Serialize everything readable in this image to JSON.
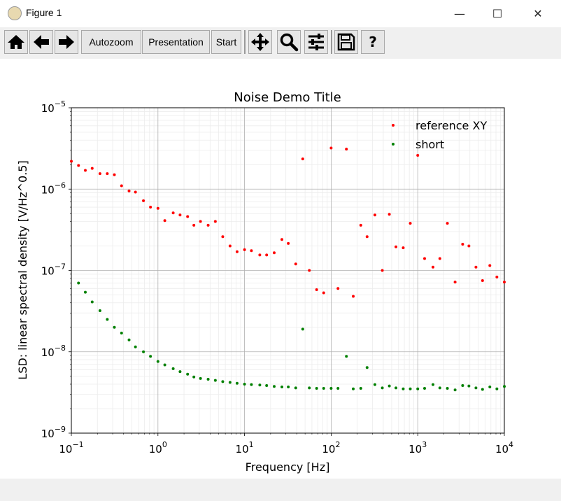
{
  "window": {
    "title": "Figure 1",
    "minimize": "—",
    "maximize": "☐",
    "close": "✕"
  },
  "toolbar": {
    "autozoom_label": "Autozoom",
    "presentation_label": "Presentation",
    "start_label": "Start",
    "help_label": "?"
  },
  "chart_data": {
    "type": "scatter",
    "title": "Noise Demo Title",
    "xlabel": "Frequency [Hz]",
    "ylabel": "LSD: linear spectral density [V/Hz^0.5]",
    "xscale": "log",
    "yscale": "log",
    "xlim": [
      0.1,
      10000
    ],
    "ylim": [
      1e-09,
      1e-05
    ],
    "grid": true,
    "legend_position": "top-right",
    "x_ticks": [
      {
        "base": "10",
        "exp": "−1"
      },
      {
        "base": "10",
        "exp": "0"
      },
      {
        "base": "10",
        "exp": "1"
      },
      {
        "base": "10",
        "exp": "2"
      },
      {
        "base": "10",
        "exp": "3"
      },
      {
        "base": "10",
        "exp": "4"
      }
    ],
    "y_ticks": [
      {
        "base": "10",
        "exp": "−9"
      },
      {
        "base": "10",
        "exp": "−8"
      },
      {
        "base": "10",
        "exp": "−7"
      },
      {
        "base": "10",
        "exp": "−6"
      },
      {
        "base": "10",
        "exp": "−5"
      }
    ],
    "series": [
      {
        "name": "reference XY",
        "color": "#ff0000",
        "points": [
          [
            0.1,
            2.2e-06
          ],
          [
            0.121,
            1.95e-06
          ],
          [
            0.145,
            1.7e-06
          ],
          [
            0.174,
            1.8e-06
          ],
          [
            0.214,
            1.55e-06
          ],
          [
            0.26,
            1.55e-06
          ],
          [
            0.314,
            1.5e-06
          ],
          [
            0.38,
            1.1e-06
          ],
          [
            0.464,
            9.5e-07
          ],
          [
            0.55,
            9.2e-07
          ],
          [
            0.68,
            7.2e-07
          ],
          [
            0.82,
            6e-07
          ],
          [
            1.0,
            5.8e-07
          ],
          [
            1.2,
            4.1e-07
          ],
          [
            1.5,
            5.1e-07
          ],
          [
            1.8,
            4.8e-07
          ],
          [
            2.2,
            4.6e-07
          ],
          [
            2.6,
            3.6e-07
          ],
          [
            3.1,
            4e-07
          ],
          [
            3.8,
            3.6e-07
          ],
          [
            4.6,
            4e-07
          ],
          [
            5.6,
            2.6e-07
          ],
          [
            6.8,
            2e-07
          ],
          [
            8.2,
            1.7e-07
          ],
          [
            10,
            1.8e-07
          ],
          [
            12,
            1.75e-07
          ],
          [
            15,
            1.55e-07
          ],
          [
            18,
            1.55e-07
          ],
          [
            22,
            1.65e-07
          ],
          [
            27,
            2.4e-07
          ],
          [
            32,
            2.15e-07
          ],
          [
            39,
            1.2e-07
          ],
          [
            47,
            2.35e-06
          ],
          [
            56,
            1e-07
          ],
          [
            68,
            5.8e-08
          ],
          [
            82,
            5.3e-08
          ],
          [
            100,
            3.2e-06
          ],
          [
            120,
            6e-08
          ],
          [
            150,
            3.1e-06
          ],
          [
            180,
            4.8e-08
          ],
          [
            220,
            3.6e-07
          ],
          [
            260,
            2.6e-07
          ],
          [
            320,
            4.8e-07
          ],
          [
            390,
            1e-07
          ],
          [
            470,
            4.9e-07
          ],
          [
            560,
            1.95e-07
          ],
          [
            680,
            1.9e-07
          ],
          [
            820,
            3.8e-07
          ],
          [
            1000,
            2.6e-06
          ],
          [
            1200,
            1.4e-07
          ],
          [
            1500,
            1.1e-07
          ],
          [
            1800,
            1.4e-07
          ],
          [
            2200,
            3.8e-07
          ],
          [
            2700,
            7.2e-08
          ],
          [
            3300,
            2.1e-07
          ],
          [
            3900,
            2e-07
          ],
          [
            4700,
            1.1e-07
          ],
          [
            5600,
            7.5e-08
          ],
          [
            6800,
            1.15e-07
          ],
          [
            8200,
            8.3e-08
          ],
          [
            10000,
            7.2e-08
          ]
        ]
      },
      {
        "name": "short",
        "color": "#008000",
        "points": [
          [
            0.121,
            7e-08
          ],
          [
            0.145,
            5.4e-08
          ],
          [
            0.174,
            4.1e-08
          ],
          [
            0.214,
            3.2e-08
          ],
          [
            0.26,
            2.5e-08
          ],
          [
            0.314,
            2e-08
          ],
          [
            0.38,
            1.7e-08
          ],
          [
            0.464,
            1.4e-08
          ],
          [
            0.55,
            1.15e-08
          ],
          [
            0.68,
            1e-08
          ],
          [
            0.82,
            8.8e-09
          ],
          [
            1.0,
            7.6e-09
          ],
          [
            1.2,
            6.9e-09
          ],
          [
            1.5,
            6.2e-09
          ],
          [
            1.8,
            5.7e-09
          ],
          [
            2.2,
            5.3e-09
          ],
          [
            2.6,
            4.9e-09
          ],
          [
            3.1,
            4.7e-09
          ],
          [
            3.8,
            4.6e-09
          ],
          [
            4.6,
            4.45e-09
          ],
          [
            5.6,
            4.3e-09
          ],
          [
            6.8,
            4.2e-09
          ],
          [
            8.2,
            4.1e-09
          ],
          [
            10,
            4e-09
          ],
          [
            12,
            3.95e-09
          ],
          [
            15,
            3.9e-09
          ],
          [
            18,
            3.85e-09
          ],
          [
            22,
            3.75e-09
          ],
          [
            27,
            3.7e-09
          ],
          [
            32,
            3.7e-09
          ],
          [
            39,
            3.6e-09
          ],
          [
            47,
            1.9e-08
          ],
          [
            56,
            3.6e-09
          ],
          [
            68,
            3.55e-09
          ],
          [
            82,
            3.55e-09
          ],
          [
            100,
            3.55e-09
          ],
          [
            120,
            3.55e-09
          ],
          [
            150,
            8.8e-09
          ],
          [
            180,
            3.5e-09
          ],
          [
            220,
            3.55e-09
          ],
          [
            260,
            6.4e-09
          ],
          [
            320,
            3.95e-09
          ],
          [
            390,
            3.6e-09
          ],
          [
            470,
            3.8e-09
          ],
          [
            560,
            3.6e-09
          ],
          [
            680,
            3.5e-09
          ],
          [
            820,
            3.5e-09
          ],
          [
            1000,
            3.5e-09
          ],
          [
            1200,
            3.55e-09
          ],
          [
            1500,
            3.95e-09
          ],
          [
            1800,
            3.6e-09
          ],
          [
            2200,
            3.55e-09
          ],
          [
            2700,
            3.4e-09
          ],
          [
            3300,
            3.85e-09
          ],
          [
            3900,
            3.8e-09
          ],
          [
            4700,
            3.6e-09
          ],
          [
            5600,
            3.45e-09
          ],
          [
            6800,
            3.7e-09
          ],
          [
            8200,
            3.5e-09
          ],
          [
            10000,
            3.75e-09
          ]
        ]
      }
    ]
  }
}
